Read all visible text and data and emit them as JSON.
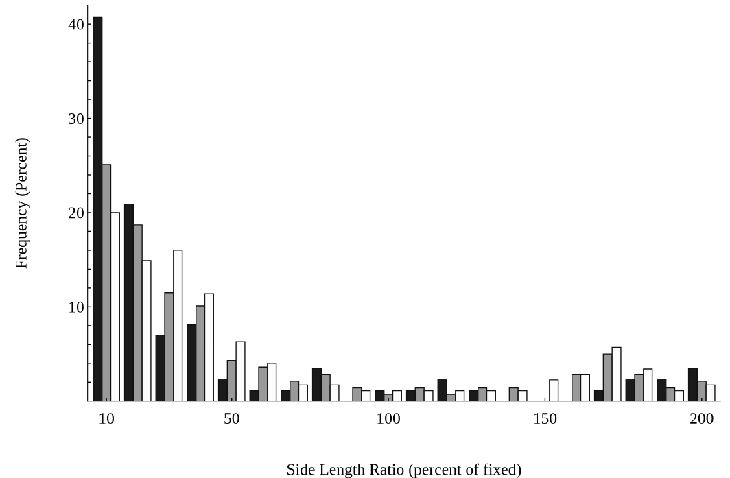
{
  "chart_data": {
    "type": "bar",
    "xlabel": "Side Length Ratio (percent of fixed)",
    "ylabel": "Frequency (Percent)",
    "x": [
      10,
      20,
      30,
      40,
      50,
      60,
      70,
      80,
      90,
      100,
      110,
      120,
      130,
      140,
      150,
      160,
      170,
      180,
      190,
      200
    ],
    "series": [
      {
        "color": "#1a1a1a",
        "values": [
          40.7,
          20.9,
          7.0,
          8.1,
          2.3,
          1.15,
          1.15,
          3.5,
          null,
          1.1,
          1.1,
          2.3,
          1.1,
          null,
          null,
          null,
          1.15,
          2.3,
          2.3,
          3.5
        ]
      },
      {
        "color": "#999999",
        "values": [
          25.1,
          18.7,
          11.5,
          10.1,
          4.3,
          3.6,
          2.1,
          2.8,
          1.4,
          0.7,
          1.4,
          0.7,
          1.4,
          1.4,
          null,
          2.8,
          5.0,
          2.8,
          1.4,
          2.1
        ]
      },
      {
        "color": "#fcfcfc",
        "values": [
          20.0,
          14.9,
          16.0,
          11.4,
          6.3,
          4.0,
          1.7,
          1.7,
          1.1,
          1.1,
          1.1,
          1.1,
          1.1,
          1.1,
          2.25,
          2.8,
          5.7,
          3.4,
          1.1,
          1.7
        ]
      }
    ],
    "xlim": [
      4,
      206
    ],
    "xticks": [
      10,
      50,
      100,
      150,
      200
    ],
    "ylim": [
      0,
      42
    ],
    "yticks": [
      {
        "value": 2,
        "label": null
      },
      {
        "value": 4,
        "label": null
      },
      {
        "value": 6,
        "label": null
      },
      {
        "value": 8,
        "label": null
      },
      10,
      {
        "value": 12,
        "label": null
      },
      {
        "value": 14,
        "label": null
      },
      {
        "value": 16,
        "label": null
      },
      {
        "value": 18,
        "label": null
      },
      20,
      {
        "value": 22,
        "label": null
      },
      {
        "value": 24,
        "label": null
      },
      {
        "value": 26,
        "label": null
      },
      {
        "value": 28,
        "label": null
      },
      30,
      {
        "value": 32,
        "label": null
      },
      {
        "value": 34,
        "label": null
      },
      {
        "value": 36,
        "label": null
      },
      {
        "value": 38,
        "label": null
      },
      40
    ],
    "grid": false,
    "legend": false
  }
}
